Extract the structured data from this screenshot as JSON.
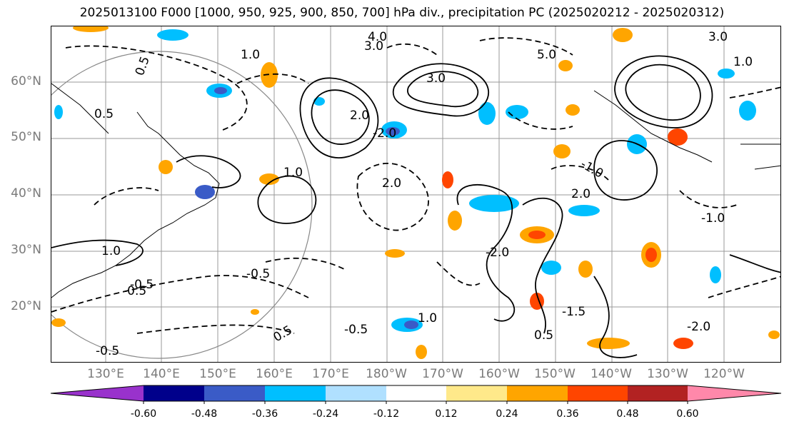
{
  "title": "2025013100 F000 [1000, 950, 925, 900, 850, 700] hPa div., precipitation PC (2025020212 - 2025020312)",
  "latitude_labels": [
    "60°N",
    "50°N",
    "40°N",
    "30°N",
    "20°N"
  ],
  "longitude_labels": [
    "130°E",
    "140°E",
    "150°E",
    "160°E",
    "170°E",
    "180°W",
    "170°W",
    "160°W",
    "150°W",
    "140°W",
    "130°W",
    "120°W"
  ],
  "contour_labels": [
    {
      "text": "4.0"
    },
    {
      "text": "3.0"
    },
    {
      "text": "5.0"
    },
    {
      "text": "1.0"
    },
    {
      "text": "0.5"
    },
    {
      "text": "3.0"
    },
    {
      "text": "2.0"
    },
    {
      "text": "0.5"
    },
    {
      "text": "-2.0"
    },
    {
      "text": "3.0"
    },
    {
      "text": "1.0"
    },
    {
      "text": "2.0"
    },
    {
      "text": "1.0"
    },
    {
      "text": "-1.0"
    },
    {
      "text": "-0.5"
    },
    {
      "text": "-0.5"
    },
    {
      "text": "-0.5"
    },
    {
      "text": "0.5"
    },
    {
      "text": "-2.0"
    },
    {
      "text": "-1.5"
    },
    {
      "text": "-0.5"
    },
    {
      "text": "1.0"
    },
    {
      "text": "0.5"
    },
    {
      "text": "2.0"
    },
    {
      "text": "-1.0"
    },
    {
      "text": "-0.5"
    },
    {
      "text": "1.0"
    },
    {
      "text": "-2.0"
    }
  ],
  "colorbar": {
    "tick_labels": [
      "-0.60",
      "-0.48",
      "-0.36",
      "-0.24",
      "-0.12",
      "0.12",
      "0.24",
      "0.36",
      "0.48",
      "0.60"
    ],
    "colors": [
      "#9932cc",
      "#00008b",
      "#3a5bc7",
      "#00bfff",
      "#b0e0ff",
      "#ffffff",
      "#ffe98a",
      "#ffa500",
      "#ff4500",
      "#b22222",
      "#ff88aa"
    ]
  }
}
